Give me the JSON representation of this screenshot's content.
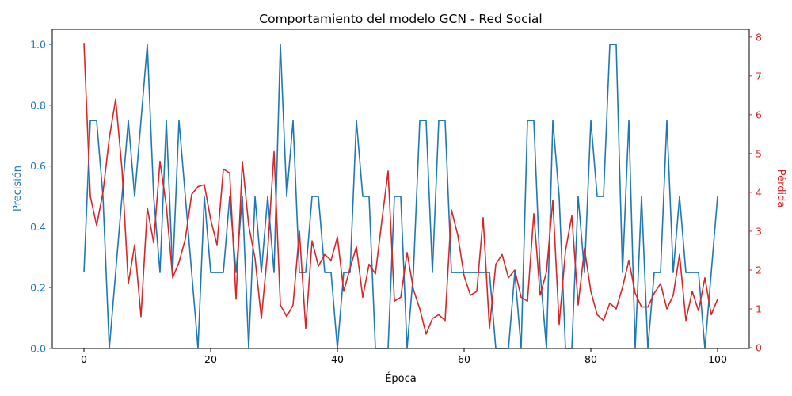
{
  "chart_data": {
    "type": "line",
    "title": "Comportamiento del modelo GCN - Red Social",
    "xlabel": "Época",
    "ylabel_left": "Precisión",
    "ylabel_right": "Pérdida",
    "xlim": [
      -5,
      105
    ],
    "ylim_left": [
      0,
      1.05
    ],
    "ylim_right": [
      -0.02,
      8.2
    ],
    "x_ticks": [
      0,
      20,
      40,
      60,
      80,
      100
    ],
    "y_ticks_left": [
      0.0,
      0.2,
      0.4,
      0.6,
      0.8,
      1.0
    ],
    "y_ticks_right": [
      0,
      1,
      2,
      3,
      4,
      5,
      6,
      7,
      8
    ],
    "grid": false,
    "colors": {
      "accuracy": "#1f77b4",
      "loss": "#d62728"
    },
    "x": [
      0,
      1,
      2,
      3,
      4,
      5,
      6,
      7,
      8,
      9,
      10,
      11,
      12,
      13,
      14,
      15,
      16,
      17,
      18,
      19,
      20,
      21,
      22,
      23,
      24,
      25,
      26,
      27,
      28,
      29,
      30,
      31,
      32,
      33,
      34,
      35,
      36,
      37,
      38,
      39,
      40,
      41,
      42,
      43,
      44,
      45,
      46,
      47,
      48,
      49,
      50,
      51,
      52,
      53,
      54,
      55,
      56,
      57,
      58,
      59,
      60,
      61,
      62,
      63,
      64,
      65,
      66,
      67,
      68,
      69,
      70,
      71,
      72,
      73,
      74,
      75,
      76,
      77,
      78,
      79,
      80,
      81,
      82,
      83,
      84,
      85,
      86,
      87,
      88,
      89,
      90,
      91,
      92,
      93,
      94,
      95,
      96,
      97,
      98,
      99,
      100
    ],
    "series": [
      {
        "axis": "left",
        "values": [
          0.25,
          0.75,
          0.75,
          0.5,
          0.0,
          0.25,
          0.5,
          0.75,
          0.5,
          0.75,
          1.0,
          0.5,
          0.25,
          0.75,
          0.25,
          0.75,
          0.5,
          0.25,
          0.0,
          0.5,
          0.25,
          0.25,
          0.25,
          0.5,
          0.25,
          0.5,
          0.0,
          0.5,
          0.25,
          0.5,
          0.25,
          1.0,
          0.5,
          0.75,
          0.25,
          0.25,
          0.5,
          0.5,
          0.25,
          0.25,
          0.0,
          0.25,
          0.25,
          0.75,
          0.5,
          0.5,
          0.0,
          0.0,
          0.0,
          0.5,
          0.5,
          0.0,
          0.25,
          0.75,
          0.75,
          0.25,
          0.75,
          0.75,
          0.25,
          0.25,
          0.25,
          0.25,
          0.25,
          0.25,
          0.25,
          0.0,
          0.0,
          0.0,
          0.25,
          0.0,
          0.75,
          0.75,
          0.25,
          0.0,
          0.75,
          0.5,
          0.0,
          0.0,
          0.5,
          0.25,
          0.75,
          0.5,
          0.5,
          1.0,
          1.0,
          0.25,
          0.75,
          0.0,
          0.5,
          0.0,
          0.25,
          0.25,
          0.75,
          0.25,
          0.5,
          0.25,
          0.25,
          0.25,
          0.0,
          0.25,
          0.5
        ]
      },
      {
        "axis": "right",
        "values": [
          7.85,
          3.9,
          3.15,
          4.0,
          5.4,
          6.4,
          4.6,
          1.65,
          2.65,
          0.8,
          3.6,
          2.7,
          4.8,
          3.65,
          1.8,
          2.2,
          2.8,
          3.95,
          4.15,
          4.2,
          3.3,
          2.65,
          4.6,
          4.5,
          1.25,
          4.8,
          3.15,
          2.3,
          0.75,
          2.5,
          5.05,
          1.1,
          0.8,
          1.1,
          3.0,
          0.5,
          2.75,
          2.1,
          2.4,
          2.25,
          2.85,
          1.45,
          2.05,
          2.6,
          1.3,
          2.15,
          1.9,
          3.25,
          4.55,
          1.2,
          1.3,
          2.45,
          1.5,
          1.0,
          0.35,
          0.75,
          0.85,
          0.7,
          3.55,
          2.9,
          1.85,
          1.35,
          1.45,
          3.35,
          0.5,
          2.15,
          2.4,
          1.8,
          2.0,
          1.3,
          1.2,
          3.45,
          1.35,
          1.95,
          3.8,
          0.6,
          2.5,
          3.4,
          1.1,
          2.55,
          1.45,
          0.85,
          0.7,
          1.15,
          1.0,
          1.55,
          2.25,
          1.4,
          1.05,
          1.05,
          1.4,
          1.65,
          1.0,
          1.35,
          2.4,
          0.7,
          1.45,
          0.95,
          1.8,
          0.85,
          1.25
        ]
      }
    ]
  }
}
